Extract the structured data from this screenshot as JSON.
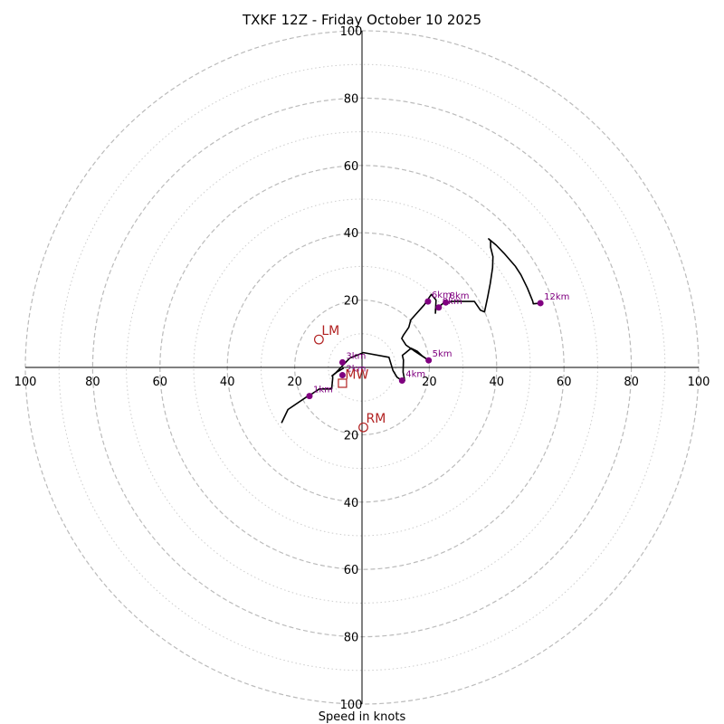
{
  "chart_data": {
    "type": "hodograph",
    "title": "TXKF 12Z - Friday October 10 2025",
    "xlabel": "Speed in knots",
    "range": [
      0,
      100
    ],
    "rings_major": [
      20,
      40,
      60,
      80,
      100
    ],
    "rings_minor": [
      10,
      30,
      50,
      70,
      90
    ],
    "ticks": {
      "left": [
        "100",
        "80",
        "60",
        "40",
        "20"
      ],
      "right": [
        "20",
        "40",
        "60",
        "80",
        "100"
      ],
      "top": [
        "20",
        "40",
        "60",
        "80",
        "100"
      ],
      "bottom": [
        "20",
        "40",
        "60",
        "80",
        "100"
      ]
    },
    "ring_values": [
      20,
      40,
      60,
      80,
      100
    ],
    "hodograph_trace": [
      [
        -23.9,
        -16.5
      ],
      [
        -22,
        -12.5
      ],
      [
        -16.5,
        -8.8
      ],
      [
        -15.4,
        -8.2
      ],
      [
        -12.7,
        -6.4
      ],
      [
        -9,
        -6.4
      ],
      [
        -8.7,
        -3.3
      ],
      [
        -8.7,
        -2.4
      ],
      [
        -7.5,
        -1.4
      ],
      [
        -5.6,
        -0.3
      ],
      [
        -7.7,
        -1.5
      ],
      [
        -8.9,
        -2.5
      ],
      [
        -7.7,
        -1.5
      ],
      [
        -5.9,
        0.4
      ],
      [
        -3.6,
        2.8
      ],
      [
        -1.3,
        3.7
      ],
      [
        0.4,
        4.4
      ],
      [
        8,
        3
      ],
      [
        9.2,
        -0.9
      ],
      [
        10.4,
        -2.9
      ],
      [
        11.6,
        -3.7
      ],
      [
        12.7,
        -3.9
      ],
      [
        12.2,
        -1.4
      ],
      [
        12.3,
        2.2
      ],
      [
        12,
        3.6
      ],
      [
        12.9,
        4.3
      ],
      [
        14.6,
        5.7
      ],
      [
        16.4,
        4.8
      ],
      [
        17.8,
        3.5
      ],
      [
        19.8,
        2.1
      ],
      [
        15.4,
        5
      ],
      [
        13.1,
        6.6
      ],
      [
        11.8,
        8.6
      ],
      [
        12.3,
        9.6
      ],
      [
        13.9,
        11.9
      ],
      [
        14.5,
        14.1
      ],
      [
        18.5,
        18.6
      ],
      [
        20.6,
        21.7
      ],
      [
        22,
        20
      ],
      [
        21.8,
        16.1
      ],
      [
        22,
        18.2
      ],
      [
        21.8,
        17.1
      ],
      [
        24.2,
        19.1
      ],
      [
        26.7,
        19.6
      ],
      [
        33.4,
        19.6
      ],
      [
        35.2,
        17
      ],
      [
        36.4,
        16.5
      ],
      [
        37.3,
        20.8
      ],
      [
        38.1,
        24.9
      ],
      [
        38.8,
        29.6
      ],
      [
        38.9,
        32.9
      ],
      [
        38.2,
        35.7
      ],
      [
        38.2,
        37.6
      ],
      [
        37.6,
        38.2
      ],
      [
        39.9,
        36.3
      ],
      [
        42.2,
        33.9
      ],
      [
        45.6,
        30
      ],
      [
        47.2,
        27.5
      ],
      [
        49.1,
        23.6
      ],
      [
        50.7,
        19.7
      ],
      [
        50.9,
        18.9
      ],
      [
        53,
        19.1
      ]
    ],
    "height_markers": [
      {
        "label": "1km",
        "u": -15.6,
        "v": -8.5
      },
      {
        "label": "2km",
        "u": -5.8,
        "v": -2.3
      },
      {
        "label": "3km",
        "u": -5.8,
        "v": 1.5
      },
      {
        "label": "4km",
        "u": 11.9,
        "v": -3.9
      },
      {
        "label": "5km",
        "u": 19.8,
        "v": 2.1
      },
      {
        "label": "6km",
        "u": 19.6,
        "v": 19.6
      },
      {
        "label": "8km",
        "u": 24.9,
        "v": 19.3
      },
      {
        "label": "9km",
        "u": 22.8,
        "v": 17.8
      },
      {
        "label": "12km",
        "u": 53,
        "v": 19.1
      }
    ],
    "storm_motion": [
      {
        "label": "LM",
        "u": -12.8,
        "v": 8.3,
        "marker": "circle"
      },
      {
        "label": "RM",
        "u": 0.4,
        "v": -17.8,
        "marker": "circle"
      },
      {
        "label": "MW",
        "u": -5.8,
        "v": -4.7,
        "marker": "square"
      }
    ],
    "colors": {
      "trace": "#000000",
      "height_marker": "#800080",
      "storm_motion": "#b22222",
      "ring_major": "#bbbbbb",
      "ring_minor": "#cccccc",
      "axis": "#000000"
    }
  }
}
